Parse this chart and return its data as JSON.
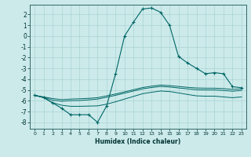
{
  "xlabel": "Humidex (Indice chaleur)",
  "background_color": "#cceaea",
  "grid_color": "#aad4d4",
  "line_color": "#006666",
  "xlim": [
    -0.5,
    23.5
  ],
  "ylim": [
    -8.6,
    2.9
  ],
  "yticks": [
    2,
    1,
    0,
    -1,
    -2,
    -3,
    -4,
    -5,
    -6,
    -7,
    -8
  ],
  "xticks": [
    0,
    1,
    2,
    3,
    4,
    5,
    6,
    7,
    8,
    9,
    10,
    11,
    12,
    13,
    14,
    15,
    16,
    17,
    18,
    19,
    20,
    21,
    22,
    23
  ],
  "series": [
    {
      "x": [
        0,
        1,
        2,
        3,
        4,
        5,
        6,
        7,
        8,
        9,
        10,
        11,
        12,
        13,
        14,
        15,
        16,
        17,
        18,
        19,
        20,
        21,
        22,
        23
      ],
      "y": [
        -5.5,
        -5.7,
        -6.2,
        -6.7,
        -7.3,
        -7.3,
        -7.3,
        -8.0,
        -6.5,
        -3.5,
        0.0,
        1.3,
        2.5,
        2.6,
        2.2,
        1.0,
        -1.9,
        -2.5,
        -3.0,
        -3.5,
        -3.4,
        -3.5,
        -4.7,
        -4.8
      ],
      "marker": true
    },
    {
      "x": [
        0,
        1,
        2,
        3,
        4,
        5,
        6,
        7,
        8,
        9,
        10,
        11,
        12,
        13,
        14,
        15,
        16,
        17,
        18,
        19,
        20,
        21,
        22,
        23
      ],
      "y": [
        -5.5,
        -5.65,
        -5.8,
        -5.9,
        -5.85,
        -5.82,
        -5.78,
        -5.72,
        -5.55,
        -5.38,
        -5.18,
        -4.98,
        -4.78,
        -4.65,
        -4.55,
        -4.6,
        -4.68,
        -4.76,
        -4.82,
        -4.84,
        -4.84,
        -4.88,
        -4.95,
        -4.9
      ],
      "marker": false
    },
    {
      "x": [
        0,
        1,
        2,
        3,
        4,
        5,
        6,
        7,
        8,
        9,
        10,
        11,
        12,
        13,
        14,
        15,
        16,
        17,
        18,
        19,
        20,
        21,
        22,
        23
      ],
      "y": [
        -5.5,
        -5.68,
        -5.95,
        -6.05,
        -6.0,
        -5.98,
        -5.92,
        -5.85,
        -5.68,
        -5.5,
        -5.3,
        -5.1,
        -4.9,
        -4.78,
        -4.68,
        -4.73,
        -4.82,
        -4.9,
        -4.98,
        -5.0,
        -5.0,
        -5.05,
        -5.12,
        -5.05
      ],
      "marker": false
    },
    {
      "x": [
        0,
        1,
        2,
        3,
        4,
        5,
        6,
        7,
        8,
        9,
        10,
        11,
        12,
        13,
        14,
        15,
        16,
        17,
        18,
        19,
        20,
        21,
        22,
        23
      ],
      "y": [
        -5.5,
        -5.72,
        -6.18,
        -6.42,
        -6.52,
        -6.52,
        -6.5,
        -6.48,
        -6.32,
        -6.1,
        -5.85,
        -5.6,
        -5.35,
        -5.22,
        -5.1,
        -5.15,
        -5.28,
        -5.42,
        -5.55,
        -5.58,
        -5.58,
        -5.65,
        -5.72,
        -5.65
      ],
      "marker": false
    }
  ]
}
